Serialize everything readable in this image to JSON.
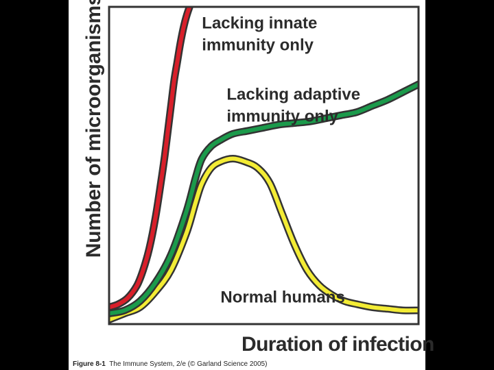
{
  "caption": {
    "figure": "Figure 8-1",
    "text": "The Immune System, 2/e (© Garland Science 2005)"
  },
  "colors": {
    "innate": "#d81f2a",
    "adaptive": "#1b9a4b",
    "normal": "#f3ec35",
    "outline": "#333333"
  },
  "chart_data": {
    "type": "line",
    "title": "",
    "xlabel": "Duration of infection",
    "ylabel": "Number of microorganisms",
    "xlim": [
      0,
      100
    ],
    "ylim": [
      0,
      100
    ],
    "grid": false,
    "legend": "none",
    "x_ticks": [],
    "y_ticks": [],
    "series": [
      {
        "name": "Lacking innate immunity only",
        "label_lines": [
          "Lacking innate",
          "immunity only"
        ],
        "color_key": "innate",
        "x": [
          0,
          3,
          6,
          9,
          11,
          13,
          15,
          17,
          18,
          19,
          20,
          21,
          22,
          23,
          24,
          25,
          26
        ],
        "y": [
          3,
          4,
          6,
          10,
          15,
          22,
          32,
          45,
          52,
          60,
          68,
          76,
          82,
          88,
          93,
          97,
          100
        ]
      },
      {
        "name": "Lacking adaptive immunity only",
        "label_lines": [
          "Lacking adaptive",
          "immunity only"
        ],
        "color_key": "adaptive",
        "x": [
          0,
          5,
          10,
          15,
          20,
          25,
          28,
          30,
          33,
          36,
          40,
          45,
          50,
          55,
          60,
          65,
          70,
          75,
          80,
          85,
          90,
          95,
          100
        ],
        "y": [
          1,
          2,
          5,
          11,
          20,
          34,
          45,
          51,
          55,
          57,
          59,
          60,
          61,
          62,
          62.5,
          63,
          64,
          65,
          66,
          68,
          70,
          72.5,
          75
        ]
      },
      {
        "name": "Normal humans",
        "label_lines": [
          "Normal humans"
        ],
        "color_key": "normal",
        "x": [
          0,
          5,
          10,
          15,
          20,
          25,
          28,
          30,
          33,
          36,
          40,
          44,
          48,
          52,
          56,
          60,
          64,
          68,
          72,
          76,
          80,
          85,
          90,
          95,
          100
        ],
        "y": [
          -1,
          1,
          3,
          8,
          15,
          27,
          37,
          43,
          48,
          50,
          51,
          50,
          48,
          43,
          33,
          23,
          15,
          10,
          7,
          5,
          4,
          3,
          2.5,
          2,
          2
        ]
      }
    ]
  }
}
